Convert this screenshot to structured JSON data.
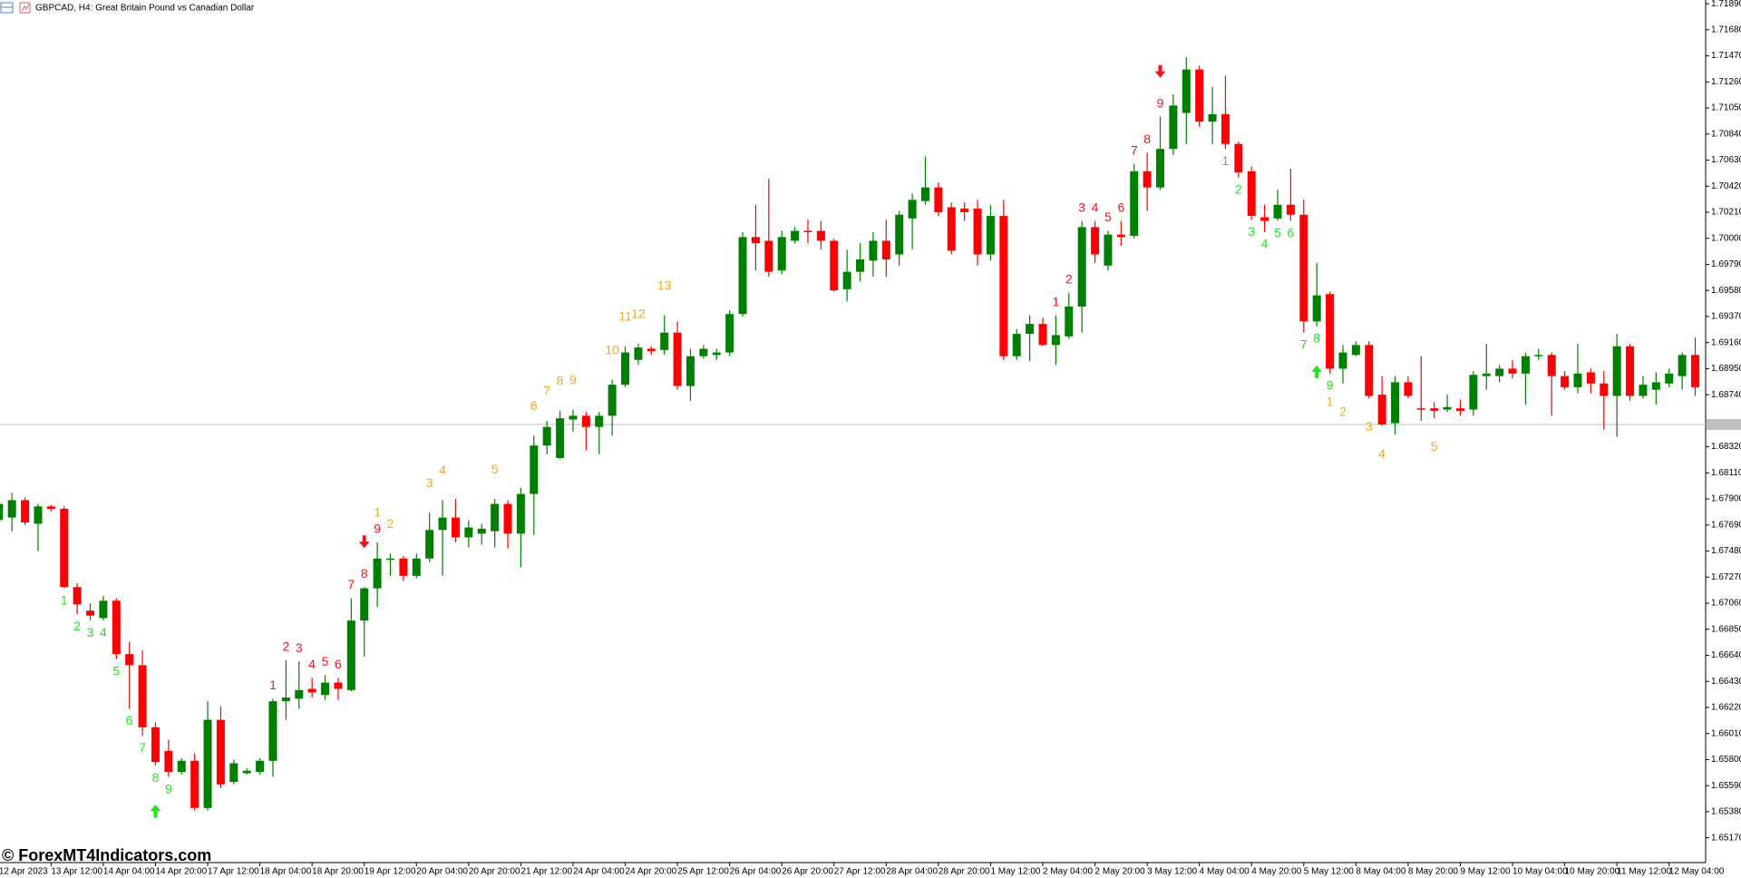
{
  "chart_data": {
    "type": "candlestick",
    "title": "GBPCAD, H4:  Great Britain Pound vs Canadian Dollar",
    "watermark": "© ForexMT4Indicators.com",
    "up_color": "#008000",
    "down_color": "#ff0000",
    "buy_color": "#1ee61e",
    "sell_color": "#f0141e",
    "countdown_color": "#f5a623",
    "ylim": [
      1.6497,
      1.7192
    ],
    "yticks": [
      {
        "value": 1.7189,
        "label": "1.71890"
      },
      {
        "value": 1.7168,
        "label": "1.71680"
      },
      {
        "value": 1.7147,
        "label": "1.71470"
      },
      {
        "value": 1.7126,
        "label": "1.71260"
      },
      {
        "value": 1.7105,
        "label": "1.71050"
      },
      {
        "value": 1.7084,
        "label": "1.70840"
      },
      {
        "value": 1.7063,
        "label": "1.70630"
      },
      {
        "value": 1.7042,
        "label": "1.70420"
      },
      {
        "value": 1.7021,
        "label": "1.70210"
      },
      {
        "value": 1.7,
        "label": "1.70000"
      },
      {
        "value": 1.6979,
        "label": "1.69790"
      },
      {
        "value": 1.6958,
        "label": "1.69580"
      },
      {
        "value": 1.6937,
        "label": "1.69370"
      },
      {
        "value": 1.6916,
        "label": "1.69160"
      },
      {
        "value": 1.6895,
        "label": "1.68950"
      },
      {
        "value": 1.6874,
        "label": "1.68740"
      },
      {
        "value": 1.6832,
        "label": "1.68320"
      },
      {
        "value": 1.6811,
        "label": "1.68110"
      },
      {
        "value": 1.679,
        "label": "1.67900"
      },
      {
        "value": 1.6769,
        "label": "1.67690"
      },
      {
        "value": 1.6748,
        "label": "1.67480"
      },
      {
        "value": 1.6727,
        "label": "1.67270"
      },
      {
        "value": 1.6706,
        "label": "1.67060"
      },
      {
        "value": 1.6685,
        "label": "1.66850"
      },
      {
        "value": 1.6664,
        "label": "1.66640"
      },
      {
        "value": 1.6643,
        "label": "1.66430"
      },
      {
        "value": 1.6622,
        "label": "1.66220"
      },
      {
        "value": 1.6601,
        "label": "1.66010"
      },
      {
        "value": 1.658,
        "label": "1.65800"
      },
      {
        "value": 1.6559,
        "label": "1.65590"
      },
      {
        "value": 1.6538,
        "label": "1.65380"
      },
      {
        "value": 1.6517,
        "label": "1.65170"
      }
    ],
    "bid_line": 1.685,
    "categories": [
      "12 Apr 2023",
      null,
      null,
      null,
      "13 Apr 12:00",
      null,
      null,
      null,
      "14 Apr 04:00",
      null,
      null,
      null,
      "14 Apr 20:00",
      null,
      null,
      null,
      "17 Apr 12:00",
      null,
      null,
      null,
      "18 Apr 04:00",
      null,
      null,
      null,
      "18 Apr 20:00",
      null,
      null,
      null,
      "19 Apr 12:00",
      null,
      null,
      null,
      "20 Apr 04:00",
      null,
      null,
      null,
      "20 Apr 20:00",
      null,
      null,
      null,
      "21 Apr 12:00",
      null,
      null,
      null,
      "24 Apr 04:00",
      null,
      null,
      null,
      "24 Apr 20:00",
      null,
      null,
      null,
      "25 Apr 12:00",
      null,
      null,
      null,
      "26 Apr 04:00",
      null,
      null,
      null,
      "26 Apr 20:00",
      null,
      null,
      null,
      "27 Apr 12:00",
      null,
      null,
      null,
      "28 Apr 04:00",
      null,
      null,
      null,
      "28 Apr 20:00",
      null,
      null,
      null,
      "1 May 12:00",
      null,
      null,
      null,
      "2 May 04:00",
      null,
      null,
      null,
      "2 May 20:00",
      null,
      null,
      null,
      "3 May 12:00",
      null,
      null,
      null,
      "4 May 04:00",
      null,
      null,
      null,
      "4 May 20:00",
      null,
      null,
      null,
      "5 May 12:00",
      null,
      null,
      null,
      "8 May 04:00",
      null,
      null,
      null,
      "8 May 20:00",
      null,
      null,
      null,
      "9 May 12:00",
      null,
      null,
      null,
      "10 May 04:00",
      null,
      null,
      null,
      "10 May 20:00",
      null,
      null,
      null,
      "11 May 12:00",
      null,
      null,
      null,
      "12 May 04:00",
      null,
      null
    ],
    "candles": [
      [
        1.6773,
        1.6791,
        1.6768,
        1.6786
      ],
      [
        1.6775,
        1.6795,
        1.6764,
        1.6789
      ],
      [
        1.6789,
        1.6791,
        1.6769,
        1.6771
      ],
      [
        1.677,
        1.6786,
        1.6748,
        1.6784
      ],
      [
        1.6784,
        1.6785,
        1.678,
        1.6782
      ],
      [
        1.6782,
        1.6784,
        1.6718,
        1.6719
      ],
      [
        1.6719,
        1.6722,
        1.6697,
        1.6705
      ],
      [
        1.67,
        1.6706,
        1.6692,
        1.6696
      ],
      [
        1.6694,
        1.6712,
        1.6692,
        1.6708
      ],
      [
        1.6708,
        1.671,
        1.6661,
        1.6665
      ],
      [
        1.6665,
        1.6675,
        1.6621,
        1.6656
      ],
      [
        1.6656,
        1.6668,
        1.6599,
        1.6606
      ],
      [
        1.6606,
        1.661,
        1.6575,
        1.6578
      ],
      [
        1.6587,
        1.6596,
        1.6566,
        1.657
      ],
      [
        1.657,
        1.6581,
        1.6568,
        1.6579
      ],
      [
        1.6579,
        1.6585,
        1.6539,
        1.6541
      ],
      [
        1.6541,
        1.6627,
        1.6539,
        1.6612
      ],
      [
        1.6612,
        1.6623,
        1.6557,
        1.656
      ],
      [
        1.6562,
        1.658,
        1.656,
        1.6577
      ],
      [
        1.6569,
        1.6573,
        1.6568,
        1.6571
      ],
      [
        1.657,
        1.6581,
        1.6568,
        1.6579
      ],
      [
        1.6579,
        1.6629,
        1.6566,
        1.6627
      ],
      [
        1.6627,
        1.666,
        1.6612,
        1.663
      ],
      [
        1.6629,
        1.6659,
        1.6621,
        1.6636
      ],
      [
        1.6637,
        1.6646,
        1.663,
        1.6634
      ],
      [
        1.6632,
        1.6648,
        1.6628,
        1.6642
      ],
      [
        1.6642,
        1.6646,
        1.6628,
        1.6637
      ],
      [
        1.6636,
        1.671,
        1.6635,
        1.6692
      ],
      [
        1.6692,
        1.6719,
        1.6663,
        1.6718
      ],
      [
        1.6718,
        1.6755,
        1.6703,
        1.6742
      ],
      [
        1.6741,
        1.6746,
        1.6728,
        1.6742
      ],
      [
        1.6742,
        1.6744,
        1.6724,
        1.6728
      ],
      [
        1.6728,
        1.6746,
        1.6726,
        1.6742
      ],
      [
        1.6742,
        1.6779,
        1.6739,
        1.6765
      ],
      [
        1.6765,
        1.6789,
        1.6728,
        1.6775
      ],
      [
        1.6775,
        1.679,
        1.6755,
        1.6759
      ],
      [
        1.6759,
        1.6773,
        1.6751,
        1.6767
      ],
      [
        1.6762,
        1.677,
        1.6753,
        1.6766
      ],
      [
        1.6764,
        1.679,
        1.6751,
        1.6786
      ],
      [
        1.6786,
        1.6789,
        1.675,
        1.6762
      ],
      [
        1.6762,
        1.6799,
        1.6735,
        1.6794
      ],
      [
        1.6794,
        1.6841,
        1.6761,
        1.6833
      ],
      [
        1.6833,
        1.6853,
        1.6826,
        1.6848
      ],
      [
        1.6823,
        1.6861,
        1.6822,
        1.6855
      ],
      [
        1.6854,
        1.6862,
        1.6844,
        1.6857
      ],
      [
        1.6857,
        1.686,
        1.6829,
        1.6848
      ],
      [
        1.6848,
        1.686,
        1.6826,
        1.6857
      ],
      [
        1.6857,
        1.6886,
        1.6841,
        1.6882
      ],
      [
        1.6882,
        1.6913,
        1.688,
        1.6908
      ],
      [
        1.6902,
        1.6915,
        1.6898,
        1.6912
      ],
      [
        1.6911,
        1.6913,
        1.6906,
        1.6909
      ],
      [
        1.691,
        1.6938,
        1.6906,
        1.6924
      ],
      [
        1.6924,
        1.6933,
        1.6878,
        1.6881
      ],
      [
        1.6881,
        1.6911,
        1.6869,
        1.6905
      ],
      [
        1.6905,
        1.6914,
        1.6903,
        1.6911
      ],
      [
        1.6906,
        1.6911,
        1.6902,
        1.6908
      ],
      [
        1.6908,
        1.6942,
        1.6905,
        1.6939
      ],
      [
        1.6939,
        1.7005,
        1.6937,
        1.7001
      ],
      [
        1.7001,
        1.7027,
        1.6974,
        1.6996
      ],
      [
        1.6998,
        1.7048,
        1.6969,
        1.6973
      ],
      [
        1.6974,
        1.7006,
        1.6971,
        1.7001
      ],
      [
        1.6998,
        1.7009,
        1.6996,
        1.7006
      ],
      [
        1.7006,
        1.7015,
        1.6996,
        1.7005
      ],
      [
        1.7006,
        1.7014,
        1.6991,
        1.6998
      ],
      [
        1.6998,
        1.7,
        1.6957,
        1.6958
      ],
      [
        1.6959,
        1.6991,
        1.6949,
        1.6973
      ],
      [
        1.6973,
        1.6996,
        1.6965,
        1.6983
      ],
      [
        1.6982,
        1.7005,
        1.6969,
        1.6998
      ],
      [
        1.6998,
        1.7015,
        1.6969,
        1.6983
      ],
      [
        1.6987,
        1.7022,
        1.6978,
        1.7019
      ],
      [
        1.7016,
        1.7036,
        1.6991,
        1.7031
      ],
      [
        1.703,
        1.7066,
        1.7027,
        1.7041
      ],
      [
        1.7041,
        1.7045,
        1.7018,
        1.7021
      ],
      [
        1.7025,
        1.7029,
        1.6987,
        1.699
      ],
      [
        1.7024,
        1.7029,
        1.7014,
        1.7021
      ],
      [
        1.7024,
        1.7031,
        1.6978,
        1.6987
      ],
      [
        1.6987,
        1.7027,
        1.6982,
        1.7018
      ],
      [
        1.7018,
        1.7031,
        1.6902,
        1.6905
      ],
      [
        1.6905,
        1.6927,
        1.6902,
        1.6923
      ],
      [
        1.6923,
        1.6938,
        1.6901,
        1.6931
      ],
      [
        1.6931,
        1.6936,
        1.6913,
        1.6914
      ],
      [
        1.6914,
        1.6938,
        1.6898,
        1.6922
      ],
      [
        1.6921,
        1.6956,
        1.6919,
        1.6945
      ],
      [
        1.6945,
        1.7014,
        1.6924,
        1.7009
      ],
      [
        1.7009,
        1.7014,
        1.698,
        1.6987
      ],
      [
        1.6978,
        1.7006,
        1.6974,
        1.7003
      ],
      [
        1.7003,
        1.7014,
        1.6994,
        1.7001
      ],
      [
        1.7002,
        1.706,
        1.7,
        1.7054
      ],
      [
        1.7054,
        1.7069,
        1.7022,
        1.7041
      ],
      [
        1.7041,
        1.7098,
        1.7039,
        1.7072
      ],
      [
        1.7072,
        1.7116,
        1.7067,
        1.7107
      ],
      [
        1.7101,
        1.7146,
        1.7076,
        1.7136
      ],
      [
        1.7136,
        1.7139,
        1.709,
        1.7094
      ],
      [
        1.7094,
        1.7122,
        1.7076,
        1.71
      ],
      [
        1.71,
        1.7131,
        1.7072,
        1.7076
      ],
      [
        1.7076,
        1.7078,
        1.7049,
        1.7053
      ],
      [
        1.7054,
        1.7058,
        1.7015,
        1.7018
      ],
      [
        1.7017,
        1.7027,
        1.7005,
        1.7014
      ],
      [
        1.7016,
        1.7039,
        1.7014,
        1.7027
      ],
      [
        1.7027,
        1.7056,
        1.7014,
        1.7019
      ],
      [
        1.7019,
        1.7031,
        1.6924,
        1.6933
      ],
      [
        1.6933,
        1.698,
        1.6929,
        1.6954
      ],
      [
        1.6955,
        1.6957,
        1.6891,
        1.6895
      ],
      [
        1.6895,
        1.6914,
        1.6883,
        1.6908
      ],
      [
        1.6906,
        1.6917,
        1.6905,
        1.6914
      ],
      [
        1.6914,
        1.6917,
        1.6871,
        1.6873
      ],
      [
        1.6874,
        1.6889,
        1.6849,
        1.685
      ],
      [
        1.6851,
        1.6889,
        1.6842,
        1.6884
      ],
      [
        1.6884,
        1.6889,
        1.6871,
        1.6873
      ],
      [
        1.6863,
        1.6905,
        1.6853,
        1.6862
      ],
      [
        1.6863,
        1.6868,
        1.6855,
        1.6861
      ],
      [
        1.6862,
        1.6874,
        1.686,
        1.6864
      ],
      [
        1.6863,
        1.687,
        1.6857,
        1.6861
      ],
      [
        1.6862,
        1.6893,
        1.6857,
        1.689
      ],
      [
        1.6889,
        1.6915,
        1.6878,
        1.6891
      ],
      [
        1.6889,
        1.6898,
        1.6884,
        1.6895
      ],
      [
        1.6895,
        1.6902,
        1.6887,
        1.6891
      ],
      [
        1.6891,
        1.6908,
        1.6866,
        1.6905
      ],
      [
        1.6905,
        1.6911,
        1.6902,
        1.6906
      ],
      [
        1.6906,
        1.6908,
        1.6857,
        1.6889
      ],
      [
        1.6889,
        1.6893,
        1.6878,
        1.688
      ],
      [
        1.688,
        1.6915,
        1.6875,
        1.6891
      ],
      [
        1.6892,
        1.6895,
        1.6875,
        1.6883
      ],
      [
        1.6883,
        1.6893,
        1.6846,
        1.6873
      ],
      [
        1.6873,
        1.6923,
        1.684,
        1.6913
      ],
      [
        1.6913,
        1.6915,
        1.6869,
        1.6873
      ],
      [
        1.6873,
        1.6889,
        1.6871,
        1.6882
      ],
      [
        1.6878,
        1.6892,
        1.6866,
        1.6884
      ],
      [
        1.6883,
        1.6895,
        1.688,
        1.6891
      ],
      [
        1.6889,
        1.6908,
        1.6878,
        1.6906
      ],
      [
        1.6906,
        1.692,
        1.6873,
        1.688
      ]
    ],
    "buy_setup": [
      {
        "x": 5,
        "count": 1
      },
      {
        "x": 6,
        "count": 2
      },
      {
        "x": 7,
        "count": 3
      },
      {
        "x": 8,
        "count": 4
      },
      {
        "x": 9,
        "count": 5
      },
      {
        "x": 10,
        "count": 6
      },
      {
        "x": 11,
        "count": 7
      },
      {
        "x": 12,
        "count": 8
      },
      {
        "x": 13,
        "count": 9
      },
      {
        "x": 94,
        "count": 1
      },
      {
        "x": 95,
        "count": 2
      },
      {
        "x": 96,
        "count": 3
      },
      {
        "x": 97,
        "count": 4
      },
      {
        "x": 98,
        "count": 5
      },
      {
        "x": 99,
        "count": 6
      },
      {
        "x": 100,
        "count": 7
      },
      {
        "x": 101,
        "count": 8
      },
      {
        "x": 102,
        "count": 9
      }
    ],
    "sell_setup": [
      {
        "x": 21,
        "count": 1
      },
      {
        "x": 22,
        "count": 2
      },
      {
        "x": 23,
        "count": 3
      },
      {
        "x": 24,
        "count": 4
      },
      {
        "x": 25,
        "count": 5
      },
      {
        "x": 26,
        "count": 6
      },
      {
        "x": 27,
        "count": 7
      },
      {
        "x": 28,
        "count": 8
      },
      {
        "x": 29,
        "count": 9
      },
      {
        "x": 81,
        "count": 1
      },
      {
        "x": 82,
        "count": 2
      },
      {
        "x": 83,
        "count": 3
      },
      {
        "x": 84,
        "count": 4
      },
      {
        "x": 85,
        "count": 5
      },
      {
        "x": 86,
        "count": 6
      },
      {
        "x": 87,
        "count": 7
      },
      {
        "x": 88,
        "count": 8
      },
      {
        "x": 89,
        "count": 9
      }
    ],
    "sell_countdown": [
      {
        "x": 29,
        "count": 1
      },
      {
        "x": 30,
        "count": 2
      },
      {
        "x": 33,
        "count": 3
      },
      {
        "x": 34,
        "count": 4
      },
      {
        "x": 38,
        "count": 5
      },
      {
        "x": 41,
        "count": 6
      },
      {
        "x": 42,
        "count": 7
      },
      {
        "x": 43,
        "count": 8
      },
      {
        "x": 44,
        "count": 9
      },
      {
        "x": 47,
        "count": 10
      },
      {
        "x": 48,
        "count": 11
      },
      {
        "x": 49,
        "count": 12
      },
      {
        "x": 51,
        "count": 13
      }
    ],
    "buy_countdown": [
      {
        "x": 102,
        "count": 1
      },
      {
        "x": 103,
        "count": 2
      },
      {
        "x": 105,
        "count": 3
      },
      {
        "x": 106,
        "count": 4
      },
      {
        "x": 110,
        "count": 5
      }
    ],
    "buy_arrows": [
      12,
      101
    ],
    "sell_arrows": [
      28,
      89
    ]
  }
}
